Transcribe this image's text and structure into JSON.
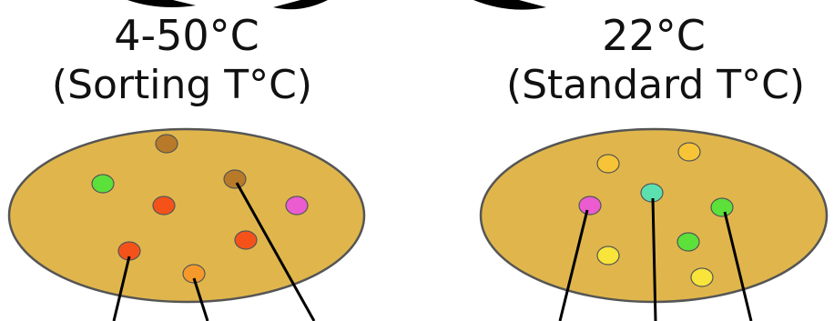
{
  "left": {
    "temperature": "4-50°C",
    "label": "(Sorting T°C)"
  },
  "right": {
    "temperature": "22°C",
    "label": "(Standard T°C)"
  }
}
